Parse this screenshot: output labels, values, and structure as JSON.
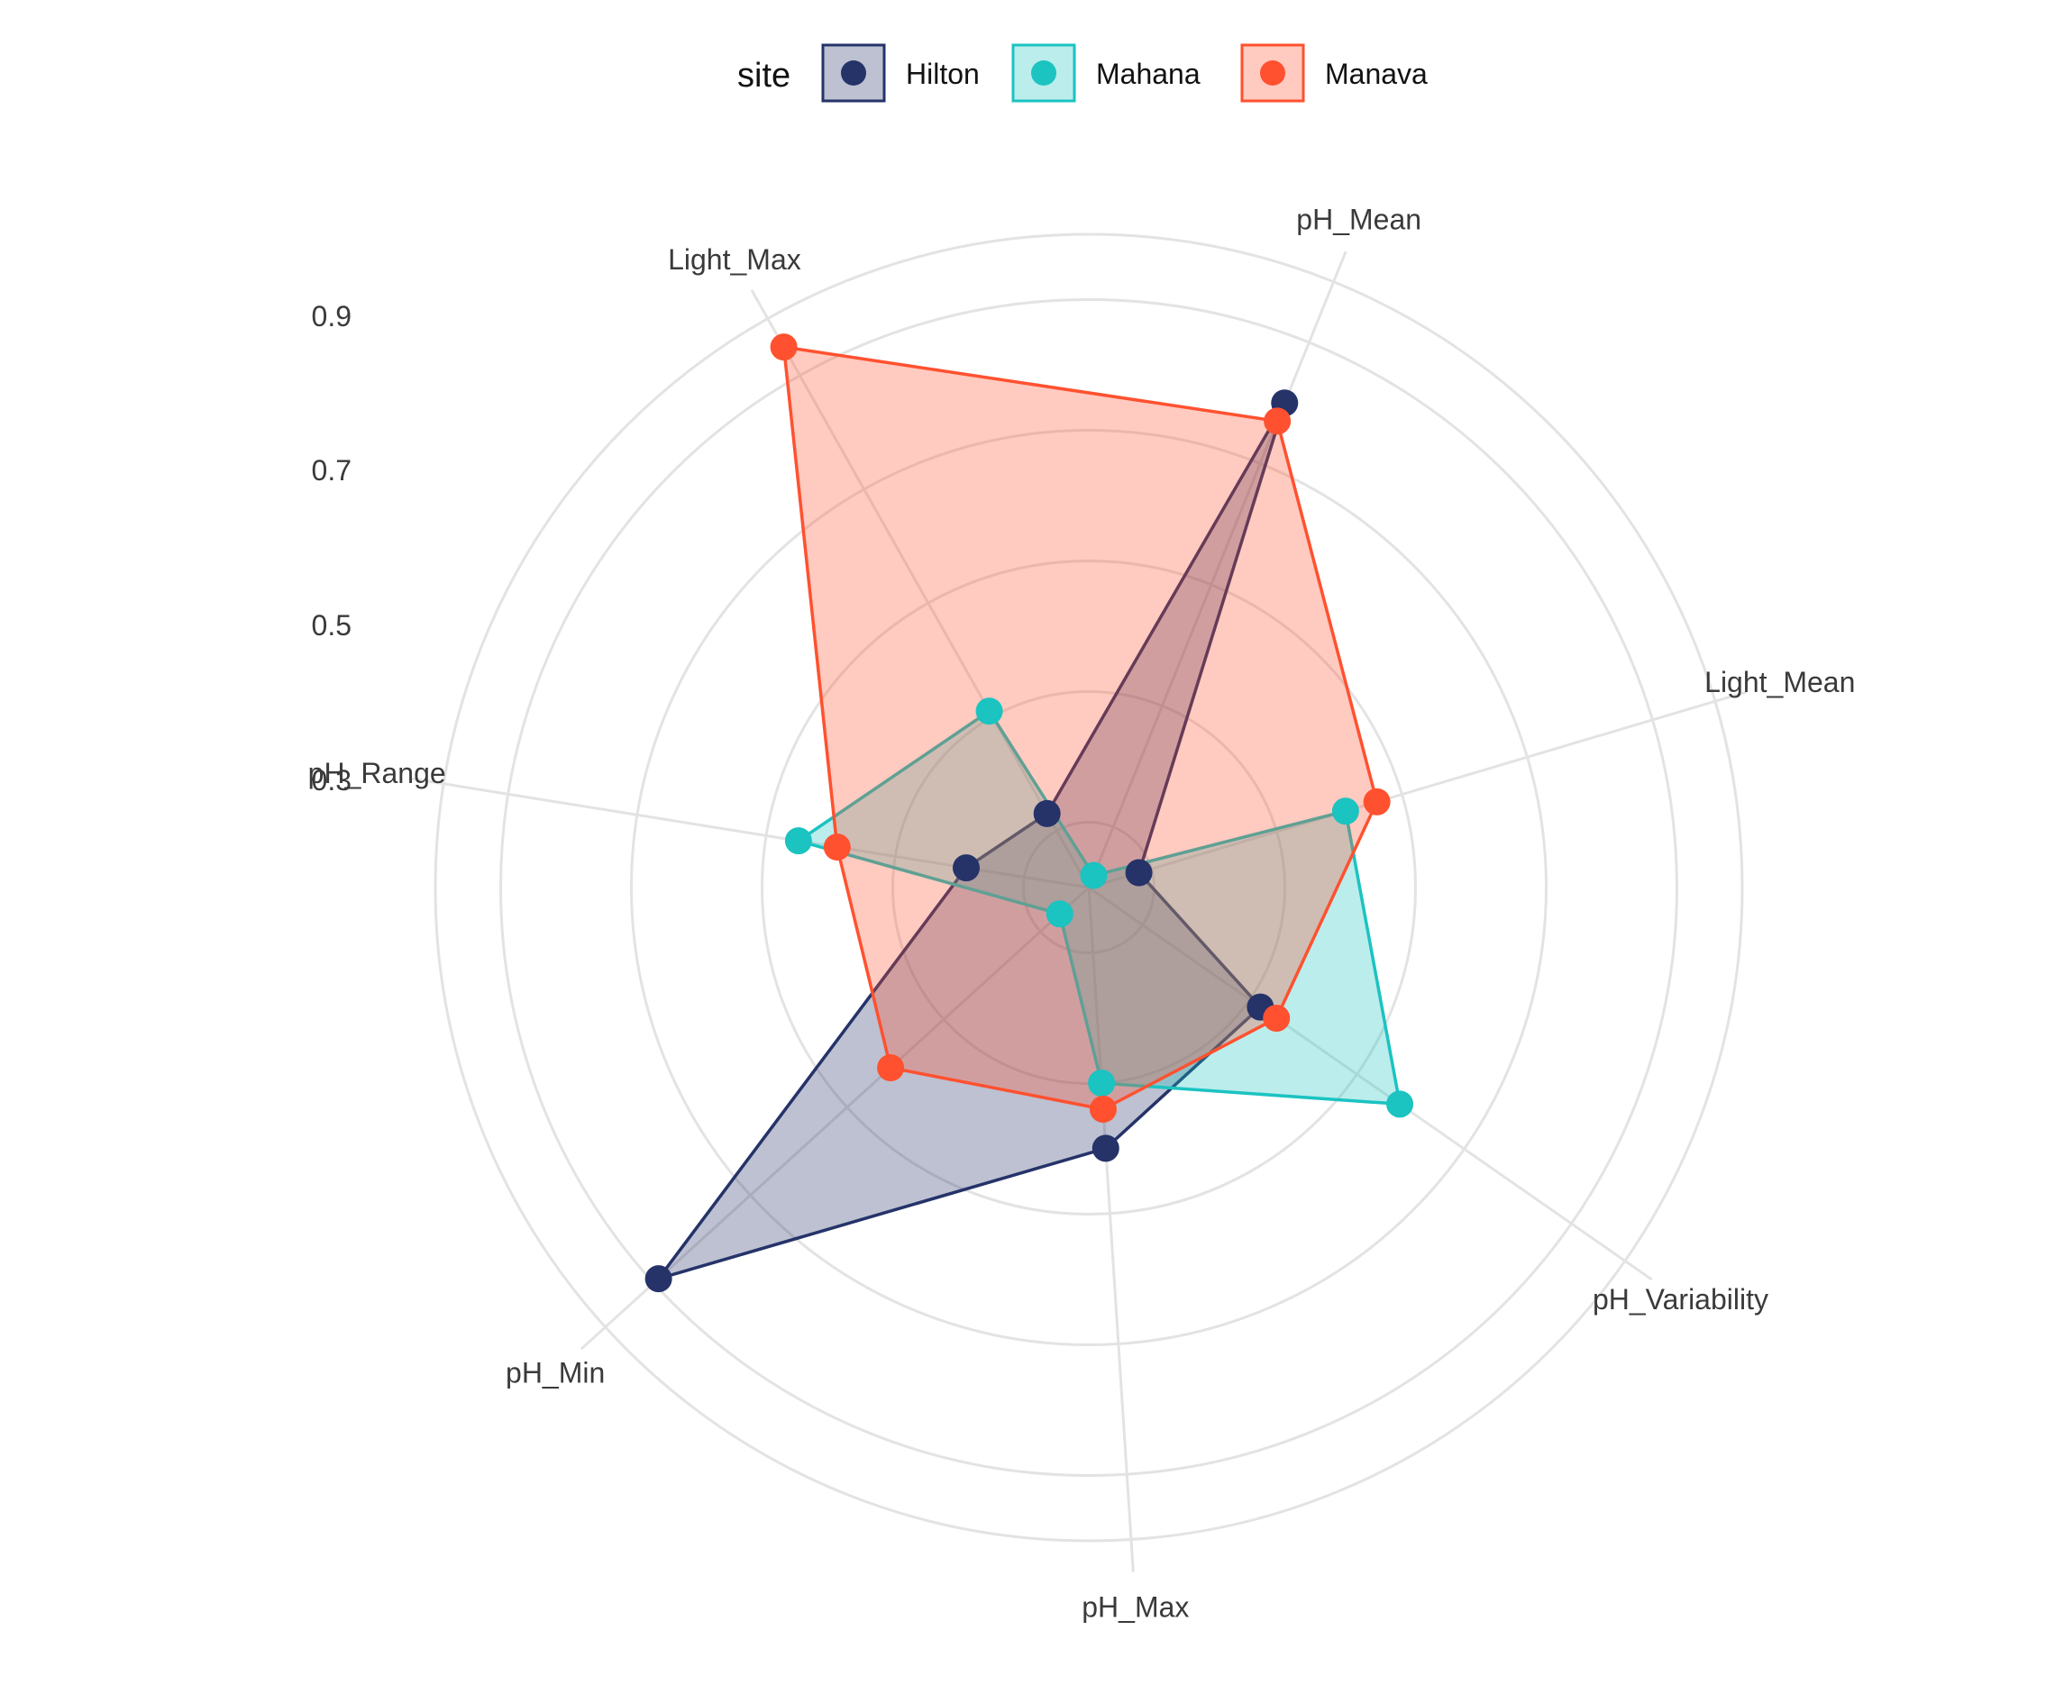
{
  "chart_data": {
    "type": "radar",
    "title": "",
    "legend": {
      "title": "site",
      "position": "top",
      "entries": [
        "Hilton",
        "Mahana",
        "Manava"
      ]
    },
    "axes": [
      "pH_Mean",
      "Light_Mean",
      "pH_Variability",
      "pH_Max",
      "pH_Min",
      "pH_Range",
      "Light_Max"
    ],
    "radial_ticks": [
      "0.9",
      "0.7",
      "0.5",
      "0.3"
    ],
    "rlim": [
      0,
      1.0
    ],
    "grid": true,
    "series": [
      {
        "name": "Hilton",
        "color": "#253369",
        "values": [
          0.8,
          0.08,
          0.32,
          0.4,
          0.89,
          0.19,
          0.13
        ]
      },
      {
        "name": "Mahana",
        "color": "#1bc3c1",
        "values": [
          0.02,
          0.41,
          0.58,
          0.3,
          0.06,
          0.45,
          0.31
        ]
      },
      {
        "name": "Manava",
        "color": "#ff512f",
        "values": [
          0.77,
          0.46,
          0.35,
          0.34,
          0.41,
          0.39,
          0.95
        ]
      }
    ]
  }
}
